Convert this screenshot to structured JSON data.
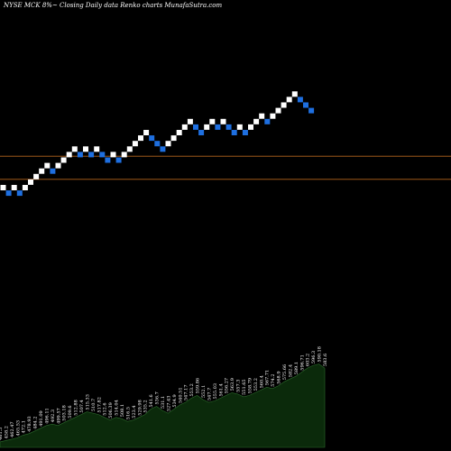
{
  "header": {
    "text": "NYSE MCK 8%~  Closing Daily data  Renko  charts MunafaSutra.com"
  },
  "colors": {
    "background": "#000000",
    "up_brick": "#ffffff",
    "down_brick": "#1e6fe0",
    "reference_line": "#b5651d",
    "volume_fill": "#0b2a0b",
    "volume_stroke": "#2c6a2c"
  },
  "chart_data": {
    "type": "renko",
    "bricks": [
      {
        "level": 0,
        "dir": "up"
      },
      {
        "level": -1,
        "dir": "down"
      },
      {
        "level": 0,
        "dir": "up"
      },
      {
        "level": -1,
        "dir": "down"
      },
      {
        "level": 0,
        "dir": "up"
      },
      {
        "level": 1,
        "dir": "up"
      },
      {
        "level": 2,
        "dir": "up"
      },
      {
        "level": 3,
        "dir": "up"
      },
      {
        "level": 4,
        "dir": "up"
      },
      {
        "level": 3,
        "dir": "down"
      },
      {
        "level": 4,
        "dir": "up"
      },
      {
        "level": 5,
        "dir": "up"
      },
      {
        "level": 6,
        "dir": "up"
      },
      {
        "level": 7,
        "dir": "up"
      },
      {
        "level": 6,
        "dir": "down"
      },
      {
        "level": 7,
        "dir": "up"
      },
      {
        "level": 6,
        "dir": "down"
      },
      {
        "level": 7,
        "dir": "up"
      },
      {
        "level": 6,
        "dir": "down"
      },
      {
        "level": 5,
        "dir": "down"
      },
      {
        "level": 6,
        "dir": "up"
      },
      {
        "level": 5,
        "dir": "down"
      },
      {
        "level": 6,
        "dir": "up"
      },
      {
        "level": 7,
        "dir": "up"
      },
      {
        "level": 8,
        "dir": "up"
      },
      {
        "level": 9,
        "dir": "up"
      },
      {
        "level": 10,
        "dir": "up"
      },
      {
        "level": 9,
        "dir": "down"
      },
      {
        "level": 8,
        "dir": "down"
      },
      {
        "level": 7,
        "dir": "down"
      },
      {
        "level": 8,
        "dir": "up"
      },
      {
        "level": 9,
        "dir": "up"
      },
      {
        "level": 10,
        "dir": "up"
      },
      {
        "level": 11,
        "dir": "up"
      },
      {
        "level": 12,
        "dir": "up"
      },
      {
        "level": 11,
        "dir": "down"
      },
      {
        "level": 10,
        "dir": "down"
      },
      {
        "level": 11,
        "dir": "up"
      },
      {
        "level": 12,
        "dir": "up"
      },
      {
        "level": 11,
        "dir": "down"
      },
      {
        "level": 12,
        "dir": "up"
      },
      {
        "level": 11,
        "dir": "down"
      },
      {
        "level": 10,
        "dir": "down"
      },
      {
        "level": 11,
        "dir": "up"
      },
      {
        "level": 10,
        "dir": "down"
      },
      {
        "level": 11,
        "dir": "up"
      },
      {
        "level": 12,
        "dir": "up"
      },
      {
        "level": 13,
        "dir": "up"
      },
      {
        "level": 12,
        "dir": "down"
      },
      {
        "level": 13,
        "dir": "up"
      },
      {
        "level": 14,
        "dir": "up"
      },
      {
        "level": 15,
        "dir": "up"
      },
      {
        "level": 16,
        "dir": "up"
      },
      {
        "level": 17,
        "dir": "up"
      },
      {
        "level": 16,
        "dir": "down"
      },
      {
        "level": 15,
        "dir": "down"
      },
      {
        "level": 14,
        "dir": "down"
      }
    ],
    "reference_lines": [
      {
        "level": 6.2
      },
      {
        "level": 2.0
      }
    ],
    "volume_profile": [
      4,
      5,
      6,
      7,
      9,
      10,
      12,
      14,
      16,
      17,
      16,
      18,
      20,
      22,
      24,
      26,
      25,
      24,
      22,
      20,
      22,
      21,
      19,
      20,
      22,
      24,
      28,
      30,
      27,
      25,
      28,
      31,
      33,
      36,
      38,
      35,
      33,
      34,
      36,
      38,
      40,
      39,
      37,
      38,
      40,
      42,
      44,
      43,
      45,
      48,
      50,
      52,
      55,
      58,
      60,
      61,
      58
    ],
    "volume_max": 66,
    "volume_labels": [
      "461.5",
      "458.2",
      "462.47",
      "465.53",
      "472.1",
      "478.93",
      "484.2",
      "491.09",
      "496.11",
      "492.3",
      "499.57",
      "503.18",
      "509.6",
      "512.88",
      "507.4",
      "515.33",
      "510.7",
      "517.82",
      "512.6",
      "506.39",
      "514.04",
      "508.1",
      "516.5",
      "523.4",
      "529.98",
      "535.2",
      "541.6",
      "536.7",
      "531.1",
      "527.43",
      "534.9",
      "540.51",
      "547.17",
      "553.2",
      "559.86",
      "552.1",
      "547.7",
      "555.03",
      "561.4",
      "556.27",
      "563.9",
      "557.3",
      "551.65",
      "558.79",
      "553.2",
      "560.4",
      "567.71",
      "574.2",
      "568.9",
      "575.66",
      "582.4",
      "589.1",
      "596.71",
      "603.2",
      "596.3",
      "590.18",
      "583.6"
    ]
  }
}
